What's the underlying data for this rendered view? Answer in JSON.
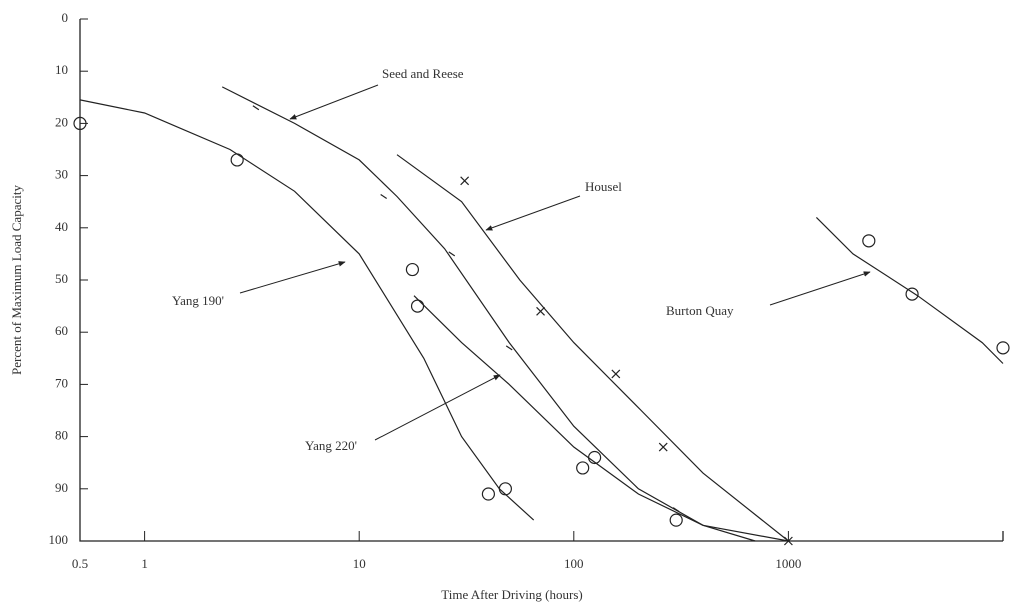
{
  "chart_data": {
    "type": "line",
    "xlabel": "Time After Driving (hours)",
    "ylabel": "Percent of Maximum Load Capacity",
    "xscale": "log",
    "xlim": [
      0.5,
      10000
    ],
    "xticks": [
      0.5,
      1,
      10,
      100,
      1000
    ],
    "ylim": [
      0,
      100
    ],
    "yticks": [
      0,
      10,
      20,
      30,
      40,
      50,
      60,
      70,
      80,
      90,
      100
    ],
    "y_inverted": true,
    "series": [
      {
        "name": "Yang 190'",
        "color": "#222222",
        "x": [
          0.5,
          1,
          2.5,
          5,
          10,
          20,
          30,
          45,
          65
        ],
        "values": [
          15.5,
          18,
          25,
          33,
          45,
          65,
          80,
          90,
          96
        ],
        "points": {
          "marker": "circle",
          "x": [
            0.5,
            2.7,
            17.7,
            40,
            48
          ],
          "values": [
            20,
            27,
            48,
            91,
            90
          ]
        }
      },
      {
        "name": "Seed and Reese",
        "color": "#222222",
        "x": [
          2.3,
          5,
          10,
          15,
          25,
          50,
          100,
          200,
          400,
          1000
        ],
        "values": [
          13,
          20,
          27,
          34,
          44,
          62,
          78,
          90,
          97,
          100
        ],
        "points": {
          "marker": "tick",
          "x": [
            3.3,
            13,
            27,
            50,
            300
          ],
          "values": [
            17,
            34,
            45,
            63,
            94
          ]
        }
      },
      {
        "name": "Yang 220'",
        "color": "#222222",
        "x": [
          18,
          30,
          50,
          100,
          200,
          400,
          700
        ],
        "values": [
          53,
          62,
          70,
          82,
          91,
          97,
          100
        ],
        "points": {
          "marker": "circle",
          "x": [
            18.7,
            110,
            125,
            300
          ],
          "values": [
            55,
            86,
            84,
            96
          ]
        }
      },
      {
        "name": "Housel",
        "color": "#222222",
        "x": [
          15,
          30,
          56,
          100,
          206,
          400,
          1000
        ],
        "values": [
          26,
          35,
          50,
          62,
          75,
          87,
          100
        ],
        "points": {
          "marker": "x",
          "x": [
            31,
            70,
            157,
            261,
            1000
          ],
          "values": [
            31,
            56,
            68,
            82,
            100
          ]
        }
      },
      {
        "name": "Burton Quay",
        "color": "#222222",
        "x": [
          1350,
          2000,
          4000,
          8000,
          10000
        ],
        "values": [
          38,
          45,
          53,
          62,
          66
        ],
        "points": {
          "marker": "circle",
          "x": [
            2370,
            3770,
            10000
          ],
          "values": [
            42.5,
            52.7,
            63
          ]
        }
      }
    ]
  }
}
